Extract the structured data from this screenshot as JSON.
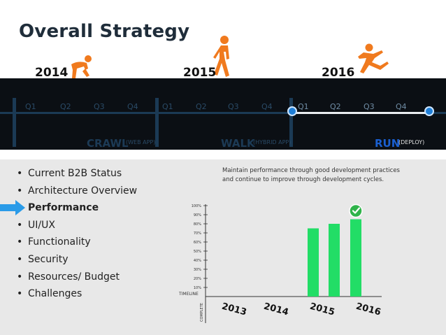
{
  "slide": {
    "title": "Overall Strategy",
    "years": [
      "2014",
      "2015",
      "2016"
    ],
    "quarters": [
      "Q1",
      "Q2",
      "Q3",
      "Q4",
      "Q1",
      "Q2",
      "Q3",
      "Q4",
      "Q1",
      "Q2",
      "Q3",
      "Q4"
    ],
    "phases": [
      {
        "label": "CRAWL",
        "sub": "(WEB APP)"
      },
      {
        "label": "WALK",
        "sub": "(HYBRID APP)"
      },
      {
        "label": "RUN",
        "sub": "(DEPLOY)"
      }
    ]
  },
  "bullets": [
    "Current B2B Status",
    "Architecture Overview",
    "Performance",
    "UI/UX",
    "Functionality",
    "Security",
    "Resources/ Budget",
    "Challenges"
  ],
  "highlighted_bullet": "Performance",
  "description": "Maintain performance through good development practices and continue to improve through development cycles.",
  "colors": {
    "band": "#0b0f14",
    "accent_blue": "#1a5fd0",
    "figure_orange": "#f07a1e",
    "bar_green": "#22dd66",
    "check_green": "#2fb34a",
    "arrow_blue": "#2a9be8"
  },
  "chart_data": {
    "type": "bar",
    "categories": [
      "2013",
      "2014",
      "2015",
      "2016"
    ],
    "values": [
      0,
      0,
      75,
      85
    ],
    "extra_bar_values": [
      80
    ],
    "ytick_labels": [
      "10%",
      "20%",
      "30%",
      "40%",
      "50%",
      "60%",
      "70%",
      "80%",
      "90%",
      "100%"
    ],
    "ylim": [
      0,
      100
    ],
    "ylabel": "COMPLETE",
    "xlabel_left": "TIMELINE",
    "annotation": "check-icon"
  }
}
